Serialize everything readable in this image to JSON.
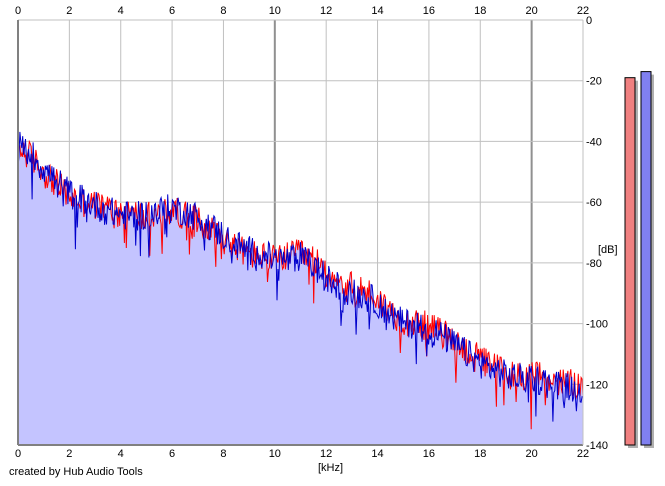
{
  "credit": "created by Hub Audio Tools",
  "chart_data": {
    "type": "area",
    "title": "",
    "xlabel": "[kHz]",
    "ylabel": "[dB]",
    "xlim": [
      0,
      22
    ],
    "ylim": [
      -140,
      0
    ],
    "x_ticks": [
      0,
      2,
      4,
      6,
      8,
      10,
      12,
      14,
      16,
      18,
      20,
      22
    ],
    "y_ticks": [
      0,
      -20,
      -40,
      -60,
      -80,
      -100,
      -120,
      -140
    ],
    "grid": true,
    "legend": "none",
    "colors": {
      "left": "#ff0000",
      "right": "#0000cc",
      "fill": "#c4c4ff",
      "grid": "#c0c0c0",
      "grid_major": "#909090",
      "meter_left": "#f08080",
      "meter_right": "#8080f0"
    },
    "series": [
      {
        "x": [
          0,
          0.5,
          1,
          1.5,
          2,
          2.5,
          3,
          3.5,
          4,
          4.5,
          5,
          5.5,
          6,
          6.5,
          7,
          7.5,
          8,
          8.5,
          9,
          9.5,
          10,
          10.5,
          11,
          11.5,
          12,
          12.5,
          13,
          13.5,
          14,
          14.5,
          15,
          15.5,
          16,
          16.5,
          17,
          17.5,
          18,
          18.5,
          19,
          19.5,
          20,
          20.5,
          21,
          21.5,
          22
        ],
        "values": [
          -42,
          -45,
          -50,
          -54,
          -58,
          -60,
          -61,
          -62,
          -63,
          -64,
          -65,
          -64,
          -63,
          -64,
          -66,
          -69,
          -72,
          -75,
          -77,
          -78,
          -79,
          -78,
          -77,
          -79,
          -83,
          -86,
          -88,
          -89,
          -92,
          -96,
          -99,
          -100,
          -101,
          -103,
          -106,
          -109,
          -112,
          -114,
          -116,
          -117,
          -117,
          -118,
          -119,
          -120,
          -120
        ]
      },
      {
        "x": [
          0,
          0.5,
          1,
          1.5,
          2,
          2.5,
          3,
          3.5,
          4,
          4.5,
          5,
          5.5,
          6,
          6.5,
          7,
          7.5,
          8,
          8.5,
          9,
          9.5,
          10,
          10.5,
          11,
          11.5,
          12,
          12.5,
          13,
          13.5,
          14,
          14.5,
          15,
          15.5,
          16,
          16.5,
          17,
          17.5,
          18,
          18.5,
          19,
          19.5,
          20,
          20.5,
          21,
          21.5,
          22
        ],
        "values": [
          -41,
          -44,
          -49,
          -53,
          -57,
          -59,
          -61,
          -63,
          -64,
          -65,
          -64,
          -63,
          -62,
          -63,
          -65,
          -68,
          -71,
          -74,
          -76,
          -77,
          -79,
          -79,
          -78,
          -81,
          -85,
          -88,
          -90,
          -91,
          -93,
          -97,
          -100,
          -100,
          -102,
          -104,
          -107,
          -110,
          -113,
          -115,
          -117,
          -118,
          -118,
          -119,
          -120,
          -121,
          -121
        ]
      }
    ],
    "level_meters": [
      {
        "value": -19,
        "color": "#f08080"
      },
      {
        "value": -17,
        "color": "#8080f0"
      }
    ]
  }
}
